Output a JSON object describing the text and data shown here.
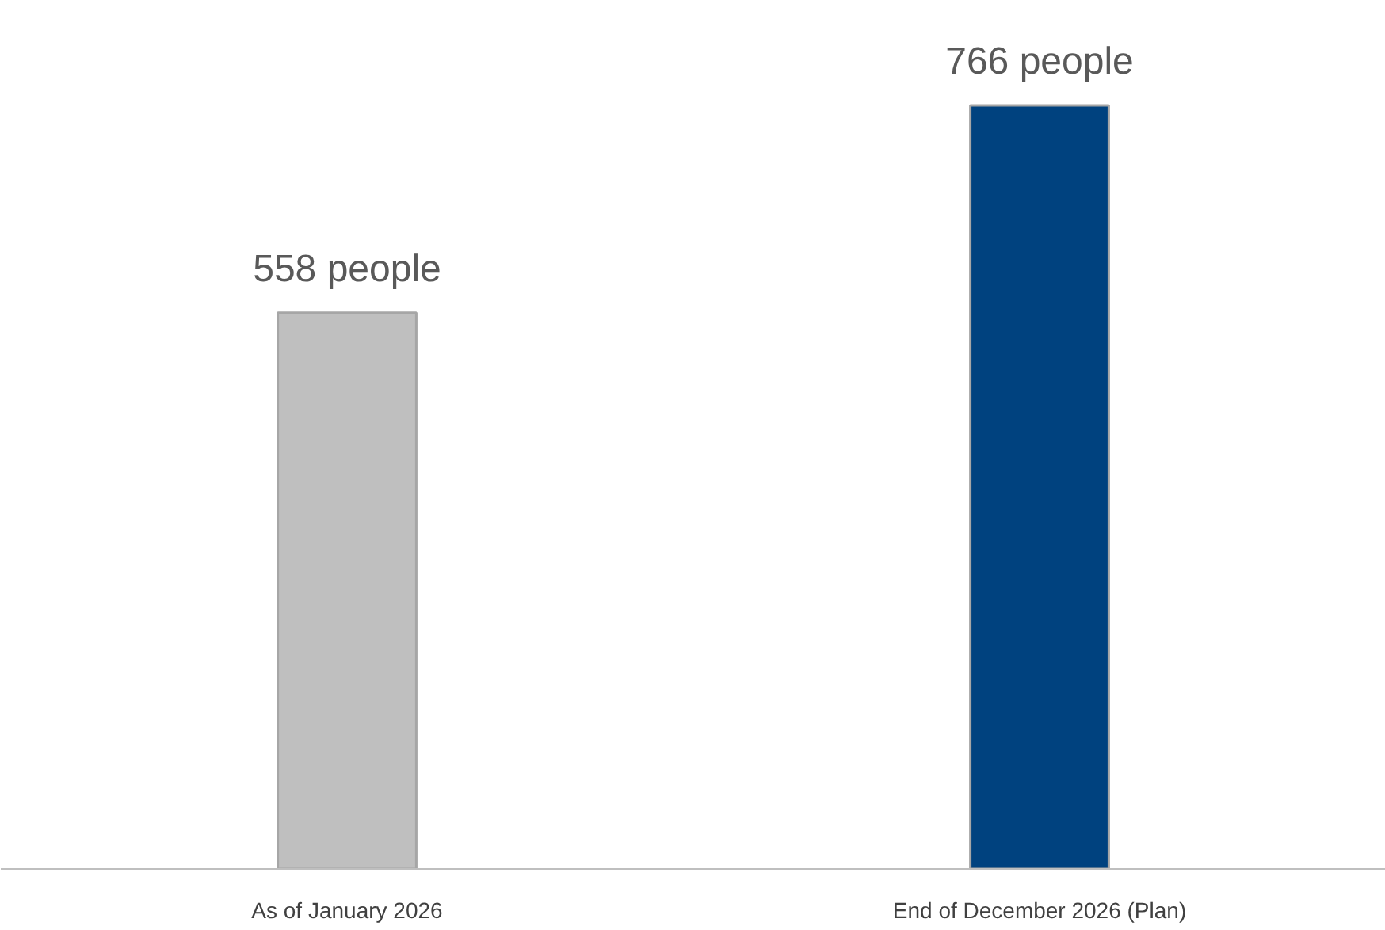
{
  "chart_data": {
    "type": "bar",
    "categories": [
      "As of January 2026",
      "End of December 2026 (Plan)"
    ],
    "values": [
      558,
      766
    ],
    "colors": [
      "#bfbfbf",
      "#00427f"
    ],
    "value_labels": [
      "558 people",
      "766 people"
    ]
  }
}
